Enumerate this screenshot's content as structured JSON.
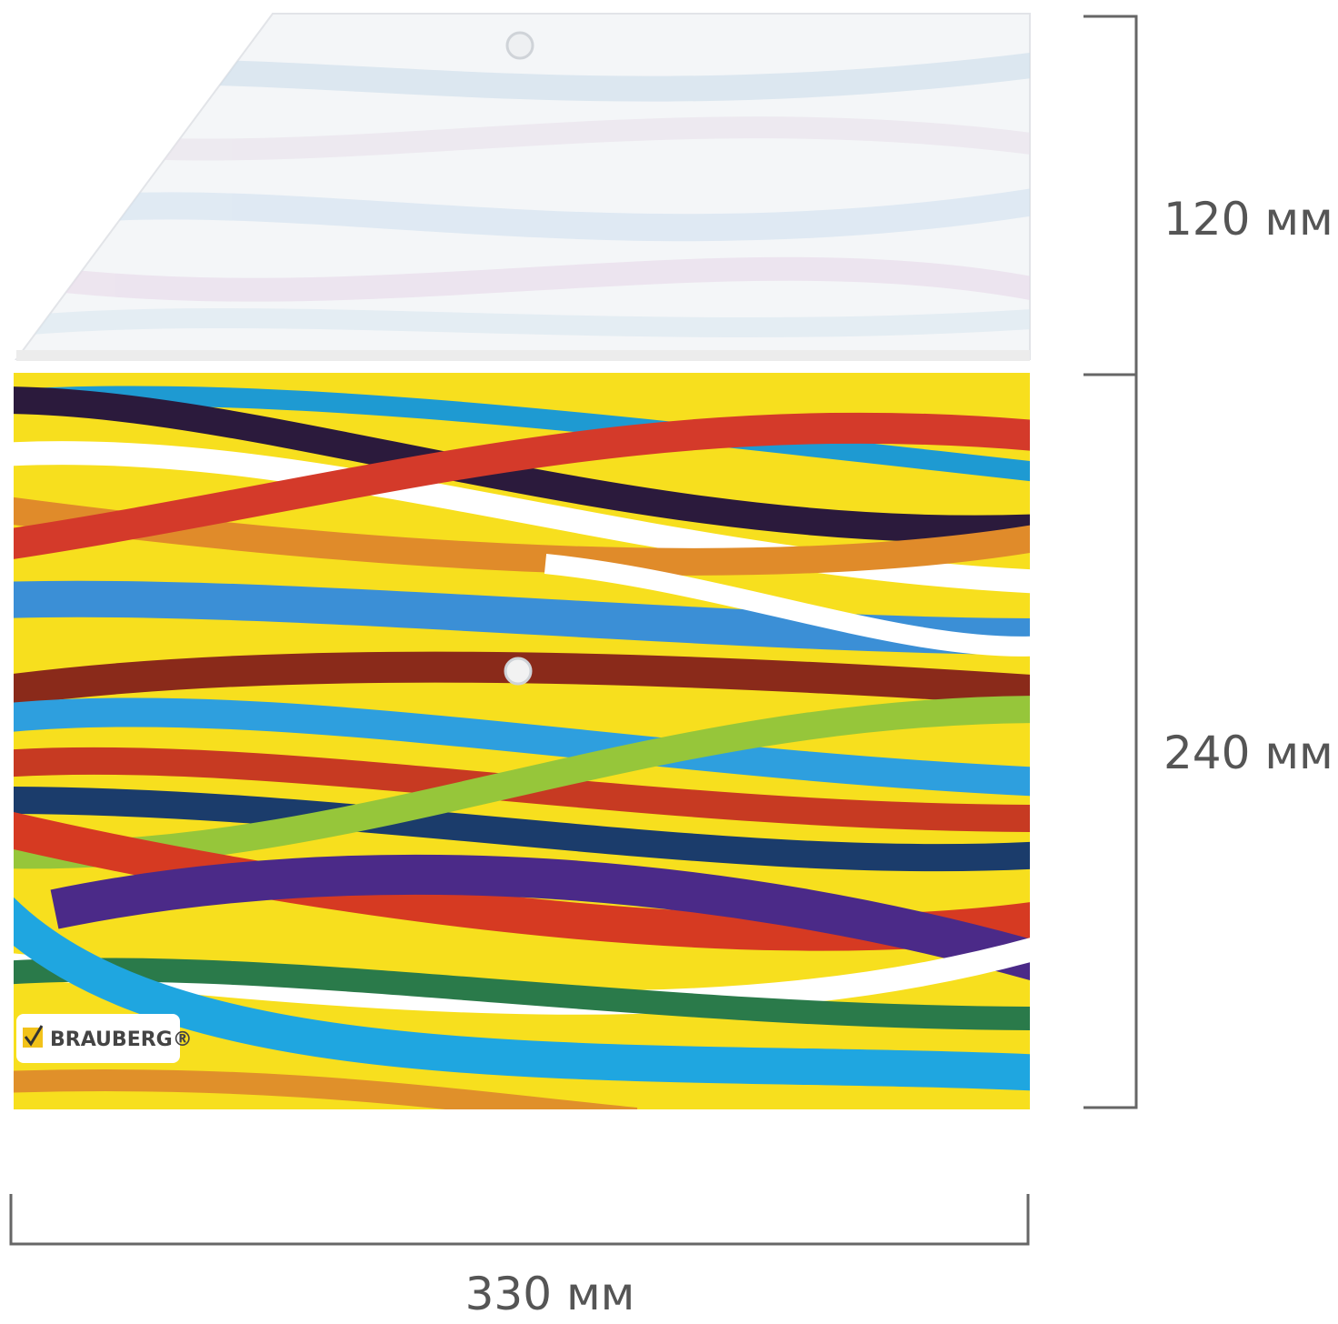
{
  "dimensions": {
    "flap_height": "120 мм",
    "body_height": "240 мм",
    "width": "330 мм"
  },
  "brand": "BRAUBERG®"
}
